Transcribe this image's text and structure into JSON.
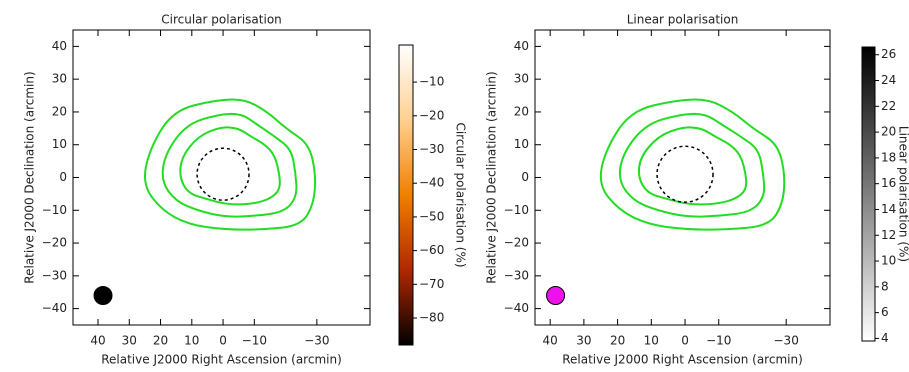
{
  "chart_data": [
    {
      "type": "polarisation-map",
      "title": "Circular polarisation",
      "xlabel": "Relative J2000 Right Ascension (arcmin)",
      "ylabel": "Relative J2000 Declination (arcmin)",
      "xlim": [
        48,
        -47
      ],
      "ylim": [
        -45,
        45
      ],
      "xticks": [
        40,
        30,
        20,
        10,
        0,
        {
          "value": -10,
          "label": "−10"
        },
        {
          "value": -30,
          "label": "−30"
        }
      ],
      "yticks": [
        40,
        30,
        20,
        10,
        0,
        {
          "value": -10,
          "label": "−10"
        },
        {
          "value": -20,
          "label": "−20"
        },
        {
          "value": -30,
          "label": "−30"
        },
        {
          "value": -40,
          "label": "−40"
        }
      ],
      "contour_color": "#22dd22",
      "beam_color": "#000000",
      "source_colors": [
        "#000000",
        "#c83000",
        "#f09020"
      ],
      "colorbar": {
        "label": "Circular polarisation (%)",
        "clim": [
          -88,
          1
        ],
        "ticks": [
          {
            "value": -10,
            "label": "−10"
          },
          {
            "value": -20,
            "label": "−20"
          },
          {
            "value": -30,
            "label": "−30"
          },
          {
            "value": -40,
            "label": "−40"
          },
          {
            "value": -50,
            "label": "−50"
          },
          {
            "value": -60,
            "label": "−60"
          },
          {
            "value": -70,
            "label": "−70"
          },
          {
            "value": -80,
            "label": "−80"
          }
        ],
        "colors": [
          "#000000",
          "#b02800",
          "#f08000",
          "#ffd090",
          "#ffffff"
        ]
      }
    },
    {
      "type": "polarisation-map",
      "title": "Linear polarisation",
      "xlabel": "Relative J2000 Right Ascension (arcmin)",
      "ylabel": "Relative J2000 Declination (arcmin)",
      "xlim": [
        44.5,
        -43
      ],
      "ylim": [
        -45,
        45
      ],
      "xticks": [
        40,
        30,
        20,
        10,
        0,
        {
          "value": -10,
          "label": "−10"
        },
        {
          "value": -30,
          "label": "−30"
        }
      ],
      "yticks": [
        40,
        30,
        20,
        10,
        0,
        {
          "value": -10,
          "label": "−10"
        },
        {
          "value": -20,
          "label": "−20"
        },
        {
          "value": -30,
          "label": "−30"
        },
        {
          "value": -40,
          "label": "−40"
        }
      ],
      "contour_color": "#22dd22",
      "beam_color": "#ee11ee",
      "source_colors": [
        "#000000",
        "#404040",
        "#909090"
      ],
      "colorbar": {
        "label": "Linear polarisation (%)",
        "clim": [
          3.8,
          26.6
        ],
        "ticks": [
          4,
          6,
          8,
          10,
          12,
          14,
          16,
          18,
          20,
          22,
          24,
          26
        ],
        "colors": [
          "#ffffff",
          "#000000"
        ]
      }
    }
  ]
}
